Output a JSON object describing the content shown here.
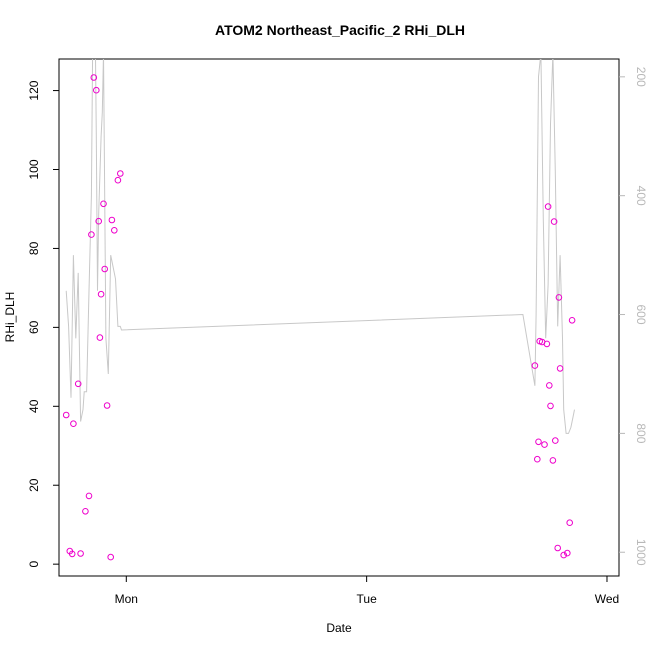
{
  "chart_data": {
    "type": "scatter",
    "title": "ATOM2 Northeast_Pacific_2 RHi_DLH",
    "xlabel": "Date",
    "ylabel": "RHi_DLH",
    "ylim": [
      -3,
      128
    ],
    "x_tick_labels": [
      "Mon",
      "Tue",
      "Wed"
    ],
    "x_tick_positions": [
      0,
      1,
      2
    ],
    "xlim": [
      -0.28,
      2.05
    ],
    "y_ticks": [
      0,
      20,
      40,
      60,
      80,
      100,
      120
    ],
    "y2_ticks": [
      200,
      400,
      600,
      800,
      1000
    ],
    "y2lim": [
      1040,
      170
    ],
    "colors": {
      "points": "#ee00cc",
      "line": "#c8c8c8",
      "frame": "#000000",
      "right_axis": "#b8b8b8"
    },
    "series": [
      {
        "marker": "open-circle",
        "x": [
          -0.25,
          -0.235,
          -0.225,
          -0.22,
          -0.2,
          -0.19,
          -0.17,
          -0.155,
          -0.145,
          -0.135,
          -0.125,
          -0.115,
          -0.11,
          -0.105,
          -0.095,
          -0.09,
          -0.08,
          -0.065,
          -0.06,
          -0.05,
          -0.035,
          -0.025,
          1.7,
          1.71,
          1.715,
          1.72,
          1.73,
          1.74,
          1.75,
          1.755,
          1.76,
          1.765,
          1.775,
          1.78,
          1.785,
          1.795,
          1.8,
          1.805,
          1.82,
          1.835,
          1.845,
          1.855
        ],
        "y": [
          37.8,
          3.3,
          2.6,
          35.6,
          45.7,
          2.7,
          13.4,
          17.3,
          83.5,
          123.3,
          120.1,
          86.9,
          57.4,
          68.4,
          91.3,
          74.8,
          40.2,
          1.8,
          87.2,
          84.6,
          97.3,
          99.0,
          50.3,
          26.6,
          31.0,
          56.5,
          56.3,
          30.3,
          55.8,
          90.6,
          45.3,
          40.1,
          26.3,
          86.8,
          31.3,
          4.1,
          67.6,
          49.6,
          2.3,
          2.8,
          10.5,
          61.8
        ]
      },
      {
        "axis": "right",
        "style": "line",
        "x": [
          -0.25,
          -0.24,
          -0.23,
          -0.22,
          -0.21,
          -0.2,
          -0.19,
          -0.18,
          -0.175,
          -0.165,
          -0.155,
          -0.145,
          -0.14,
          -0.13,
          -0.125,
          -0.12,
          -0.115,
          -0.105,
          -0.1,
          -0.095,
          -0.085,
          -0.075,
          -0.065,
          -0.055,
          -0.045,
          -0.035,
          -0.025,
          -0.02,
          1.65,
          1.7,
          1.705,
          1.715,
          1.725,
          1.735,
          1.745,
          1.755,
          1.765,
          1.775,
          1.785,
          1.795,
          1.805,
          1.815,
          1.82,
          1.83,
          1.84,
          1.85,
          1.86,
          1.865
        ],
        "y": [
          560,
          620,
          740,
          500,
          640,
          530,
          780,
          760,
          730,
          730,
          560,
          400,
          160,
          100,
          300,
          560,
          430,
          300,
          260,
          160,
          640,
          700,
          500,
          520,
          540,
          620,
          620,
          626,
          600,
          720,
          600,
          200,
          160,
          440,
          640,
          550,
          280,
          160,
          360,
          620,
          500,
          640,
          760,
          800,
          800,
          790,
          770,
          760
        ]
      }
    ]
  }
}
